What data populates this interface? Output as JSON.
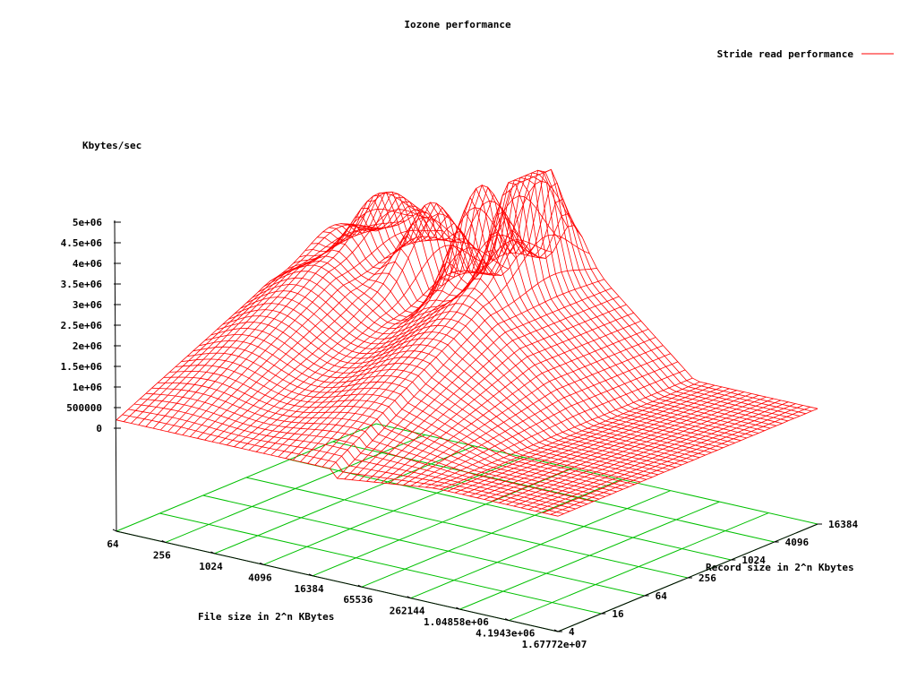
{
  "chart_data": {
    "type": "surface",
    "title": "Iozone performance",
    "zlabel": "Kbytes/sec",
    "xlabel": "File size in 2^n KBytes",
    "ylabel": "Record size in 2^n Kbytes",
    "legend": {
      "label": "Stride read performance",
      "position": "top-right"
    },
    "colors": {
      "surface": "#ff0000",
      "grid": "#00c000",
      "axes": "#000000"
    },
    "zlim": [
      0,
      5000000
    ],
    "z_ticks": [
      "0",
      "500000",
      "1e+06",
      "1.5e+06",
      "2e+06",
      "2.5e+06",
      "3e+06",
      "3.5e+06",
      "4e+06",
      "4.5e+06",
      "5e+06"
    ],
    "x_ticks": [
      "64",
      "256",
      "1024",
      "4096",
      "16384",
      "65536",
      "262144",
      "1.04858e+06",
      "4.1943e+06",
      "1.67772e+07"
    ],
    "y_ticks": [
      "4",
      "16",
      "64",
      "256",
      "1024",
      "4096",
      "16384"
    ],
    "x_log2_range": [
      6,
      24
    ],
    "y_log2_range": [
      2,
      14
    ],
    "peaks": [
      {
        "file_size_kb": "16384",
        "record_kb": "64",
        "kbytes_sec": 4800000
      },
      {
        "file_size_kb": "4096",
        "record_kb": "64",
        "kbytes_sec": 4100000
      },
      {
        "file_size_kb": "1024",
        "record_kb": "64",
        "kbytes_sec": 3400000
      },
      {
        "file_size_kb": "256",
        "record_kb": "64",
        "kbytes_sec": 2700000
      },
      {
        "file_size_kb": "64",
        "record_kb": "64",
        "kbytes_sec": 2200000
      }
    ],
    "plateau_kbytes_sec": 2400000,
    "large_file_kbytes_sec": 300000
  }
}
